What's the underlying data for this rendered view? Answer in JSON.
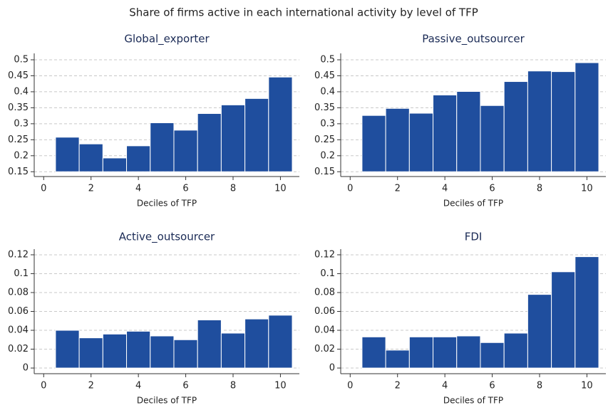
{
  "title": "Share of firms active in each international activity by level of TFP",
  "chart_data": [
    {
      "type": "bar",
      "title": "Global_exporter",
      "xlabel": "Deciles of TFP",
      "color": "#1f4e9e",
      "grid": true,
      "x": [
        1,
        2,
        3,
        4,
        5,
        6,
        7,
        8,
        9,
        10
      ],
      "values": [
        0.258,
        0.237,
        0.193,
        0.231,
        0.303,
        0.28,
        0.332,
        0.359,
        0.379,
        0.446
      ],
      "xlim": [
        -0.4,
        10.8
      ],
      "xticks": [
        0,
        2,
        4,
        6,
        8,
        10
      ],
      "ylim": [
        0.135,
        0.52
      ],
      "yticks": [
        0.15,
        0.2,
        0.25,
        0.3,
        0.35,
        0.4,
        0.45,
        0.5
      ]
    },
    {
      "type": "bar",
      "title": "Passive_outsourcer",
      "xlabel": "Deciles of TFP",
      "color": "#1f4e9e",
      "grid": true,
      "x": [
        1,
        2,
        3,
        4,
        5,
        6,
        7,
        8,
        9,
        10
      ],
      "values": [
        0.326,
        0.348,
        0.333,
        0.39,
        0.401,
        0.357,
        0.432,
        0.465,
        0.463,
        0.491
      ],
      "xlim": [
        -0.4,
        10.8
      ],
      "xticks": [
        0,
        2,
        4,
        6,
        8,
        10
      ],
      "ylim": [
        0.135,
        0.52
      ],
      "yticks": [
        0.15,
        0.2,
        0.25,
        0.3,
        0.35,
        0.4,
        0.45,
        0.5
      ]
    },
    {
      "type": "bar",
      "title": "Active_outsourcer",
      "xlabel": "Deciles of TFP",
      "color": "#1f4e9e",
      "grid": true,
      "x": [
        1,
        2,
        3,
        4,
        5,
        6,
        7,
        8,
        9,
        10
      ],
      "values": [
        0.04,
        0.032,
        0.036,
        0.039,
        0.034,
        0.03,
        0.051,
        0.037,
        0.052,
        0.056
      ],
      "xlim": [
        -0.4,
        10.8
      ],
      "xticks": [
        0,
        2,
        4,
        6,
        8,
        10
      ],
      "ylim": [
        -0.006,
        0.126
      ],
      "yticks": [
        0,
        0.02,
        0.04,
        0.06,
        0.08,
        0.1,
        0.12
      ]
    },
    {
      "type": "bar",
      "title": "FDI",
      "xlabel": "Deciles of TFP",
      "color": "#1f4e9e",
      "grid": true,
      "x": [
        1,
        2,
        3,
        4,
        5,
        6,
        7,
        8,
        9,
        10
      ],
      "values": [
        0.033,
        0.019,
        0.033,
        0.033,
        0.034,
        0.027,
        0.037,
        0.078,
        0.102,
        0.118
      ],
      "xlim": [
        -0.4,
        10.8
      ],
      "xticks": [
        0,
        2,
        4,
        6,
        8,
        10
      ],
      "ylim": [
        -0.006,
        0.126
      ],
      "yticks": [
        0,
        0.02,
        0.04,
        0.06,
        0.08,
        0.1,
        0.12
      ]
    }
  ]
}
